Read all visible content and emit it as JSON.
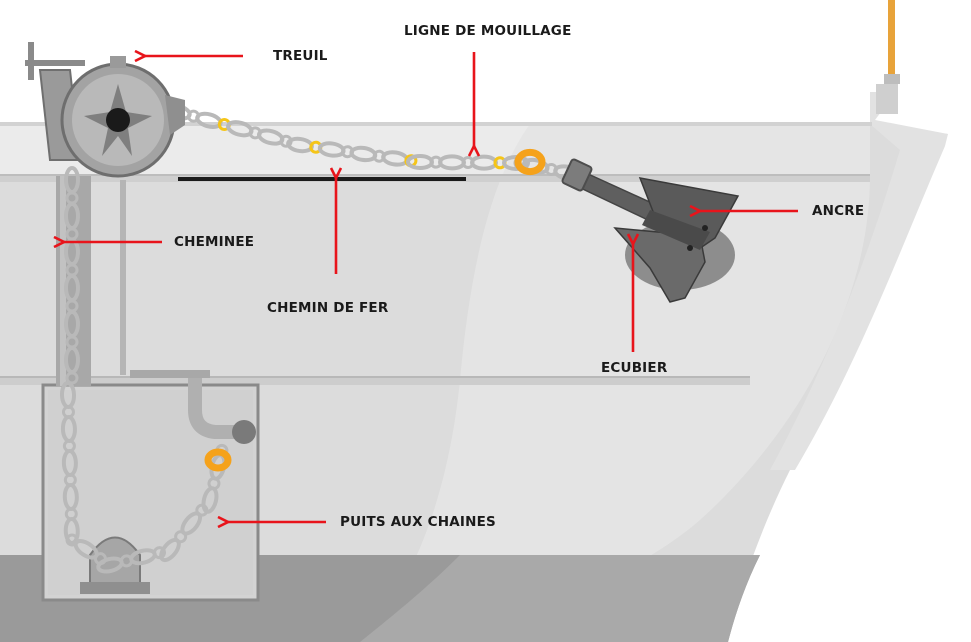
{
  "labels": {
    "treuil": "TREUIL",
    "ligne": "LIGNE DE MOUILLAGE",
    "ancre": "ANCRE",
    "cheminee": "CHEMINEE",
    "chemin": "CHEMIN DE FER",
    "ecubier": "ECUBIER",
    "puits": "PUITS AUX CHAINES"
  },
  "colors": {
    "arrow": "#e8141b",
    "hull": "#d8d8d8",
    "deck": "#e6e6e6",
    "chain": "#b9b9b9",
    "chain_marker": "#f5c518",
    "shackle": "#f5a21b",
    "mast": "#e8a33a"
  }
}
